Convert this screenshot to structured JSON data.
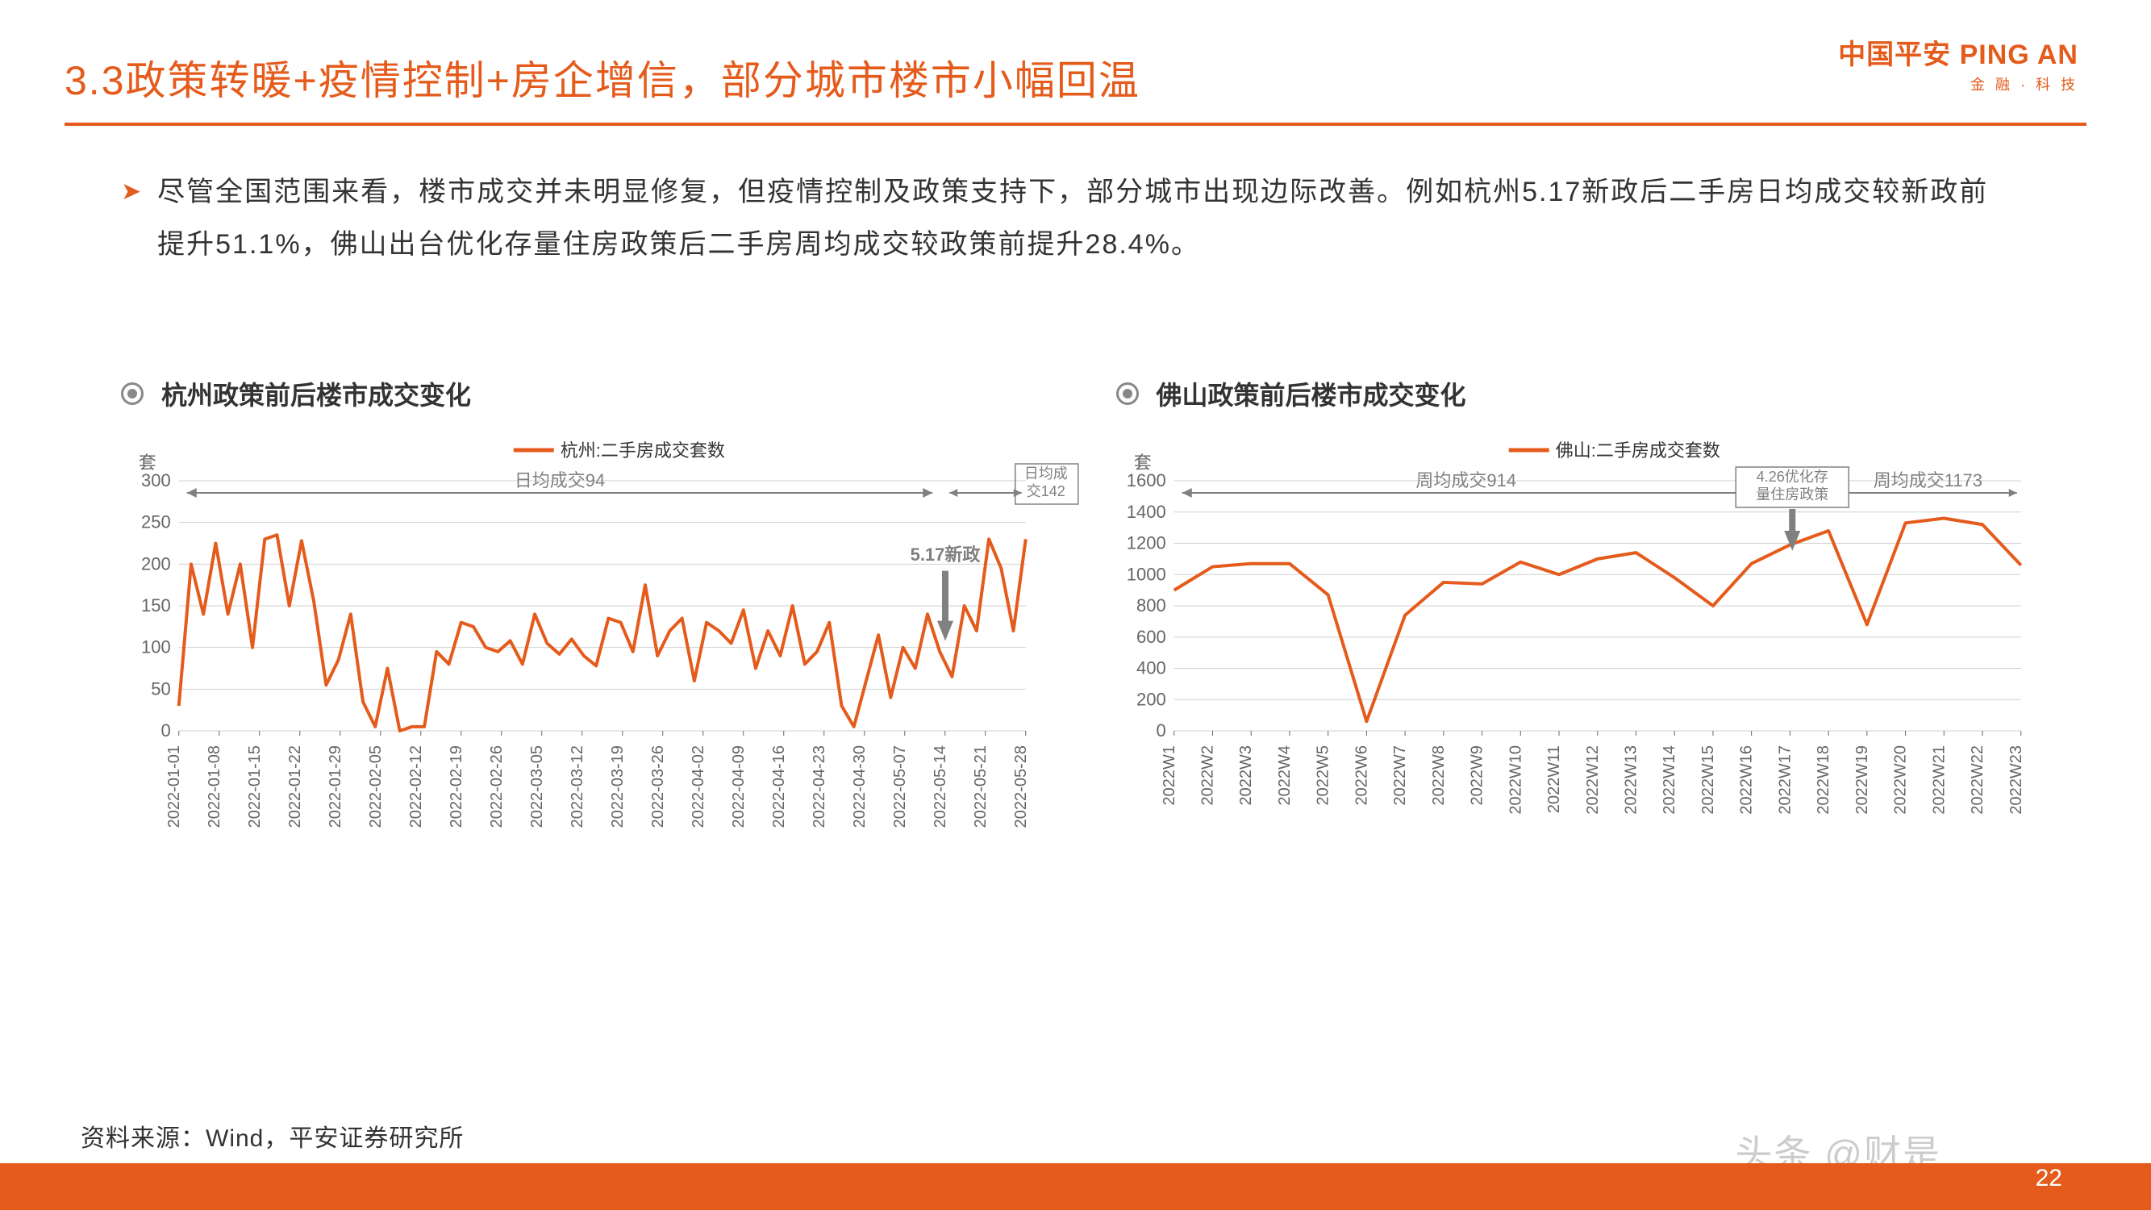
{
  "title": "3.3政策转暖+疫情控制+房企增信，部分城市楼市小幅回温",
  "logo_main": "中国平安 PING AN",
  "logo_sub": "金 融 · 科 技",
  "bullet_text": "尽管全国范围来看，楼市成交并未明显修复，但疫情控制及政策支持下，部分城市出现边际改善。例如杭州5.17新政后二手房日均成交较新政前提升51.1%，佛山出台优化存量住房政策后二手房周均成交较政策前提升28.4%。",
  "source": "资料来源：Wind，平安证券研究所",
  "page_num": "22",
  "watermark": "头条 @财是",
  "colors": {
    "accent": "#e45b1c",
    "text": "#333333",
    "grid": "#d0d0d0",
    "axis_label": "#666666",
    "gray_annot": "#808080",
    "arrow": "#808080",
    "box_border": "#808080",
    "bg": "#ffffff"
  },
  "chart1": {
    "type": "line",
    "title": "杭州政策前后楼市成交变化",
    "legend": "杭州:二手房成交套数",
    "y_unit": "套",
    "ylim": [
      0,
      300
    ],
    "ytick_step": 50,
    "yticks": [
      0,
      50,
      100,
      150,
      200,
      250,
      300
    ],
    "x_labels": [
      "2022-01-01",
      "2022-01-08",
      "2022-01-15",
      "2022-01-22",
      "2022-01-29",
      "2022-02-05",
      "2022-02-12",
      "2022-02-19",
      "2022-02-26",
      "2022-03-05",
      "2022-03-12",
      "2022-03-19",
      "2022-03-26",
      "2022-04-02",
      "2022-04-09",
      "2022-04-16",
      "2022-04-23",
      "2022-04-30",
      "2022-05-07",
      "2022-05-14",
      "2022-05-21",
      "2022-05-28"
    ],
    "line_color": "#e45b1c",
    "line_width": 4,
    "values": [
      30,
      200,
      140,
      225,
      140,
      200,
      100,
      230,
      235,
      150,
      228,
      155,
      55,
      85,
      140,
      35,
      5,
      75,
      0,
      5,
      5,
      95,
      80,
      130,
      125,
      100,
      95,
      108,
      80,
      140,
      105,
      92,
      110,
      90,
      78,
      135,
      130,
      95,
      175,
      90,
      120,
      135,
      60,
      130,
      120,
      105,
      145,
      75,
      120,
      90,
      150,
      80,
      95,
      130,
      30,
      5,
      60,
      115,
      40,
      100,
      75,
      140,
      95,
      65,
      150,
      120,
      230,
      195,
      120,
      230
    ],
    "annotations": {
      "range1_label": "日均成交94",
      "range2_label": "日均成交142",
      "arrow_label": "5.17新政"
    }
  },
  "chart2": {
    "type": "line",
    "title": "佛山政策前后楼市成交变化",
    "legend": "佛山:二手房成交套数",
    "y_unit": "套",
    "ylim": [
      0,
      1600
    ],
    "ytick_step": 200,
    "yticks": [
      0,
      200,
      400,
      600,
      800,
      1000,
      1200,
      1400,
      1600
    ],
    "x_labels": [
      "2022W1",
      "2022W2",
      "2022W3",
      "2022W4",
      "2022W5",
      "2022W6",
      "2022W7",
      "2022W8",
      "2022W9",
      "2022W10",
      "2022W11",
      "2022W12",
      "2022W13",
      "2022W14",
      "2022W15",
      "2022W16",
      "2022W17",
      "2022W18",
      "2022W19",
      "2022W20",
      "2022W21",
      "2022W22",
      "2022W23"
    ],
    "line_color": "#e45b1c",
    "line_width": 4,
    "values": [
      900,
      1050,
      1070,
      1070,
      870,
      60,
      740,
      950,
      940,
      1080,
      1000,
      1100,
      1140,
      980,
      800,
      1070,
      1190,
      1280,
      680,
      1330,
      1360,
      1320,
      1060
    ],
    "annotations": {
      "range1_label": "周均成交914",
      "range2_label": "周均成交1173",
      "arrow_label": "4.26优化存量住房政策"
    }
  }
}
